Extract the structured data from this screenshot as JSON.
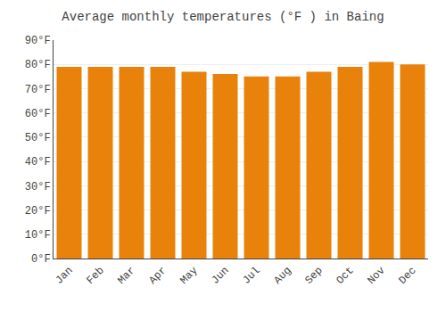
{
  "chart_data": {
    "type": "bar",
    "title": "Average monthly temperatures (°F ) in Baing",
    "categories": [
      "Jan",
      "Feb",
      "Mar",
      "Apr",
      "May",
      "Jun",
      "Jul",
      "Aug",
      "Sep",
      "Oct",
      "Nov",
      "Dec"
    ],
    "values": [
      79,
      79,
      79,
      79,
      77,
      76,
      75,
      75,
      77,
      79,
      81,
      80
    ],
    "color": "#E8820A",
    "ylim": [
      0,
      90
    ],
    "yticks": [
      {
        "value": 0,
        "label": "0°F"
      },
      {
        "value": 10,
        "label": "10°F"
      },
      {
        "value": 20,
        "label": "20°F"
      },
      {
        "value": 30,
        "label": "30°F"
      },
      {
        "value": 40,
        "label": "40°F"
      },
      {
        "value": 50,
        "label": "50°F"
      },
      {
        "value": 60,
        "label": "60°F"
      },
      {
        "value": 70,
        "label": "70°F"
      },
      {
        "value": 80,
        "label": "80°F"
      },
      {
        "value": 90,
        "label": "90°F"
      }
    ],
    "grid": true
  }
}
